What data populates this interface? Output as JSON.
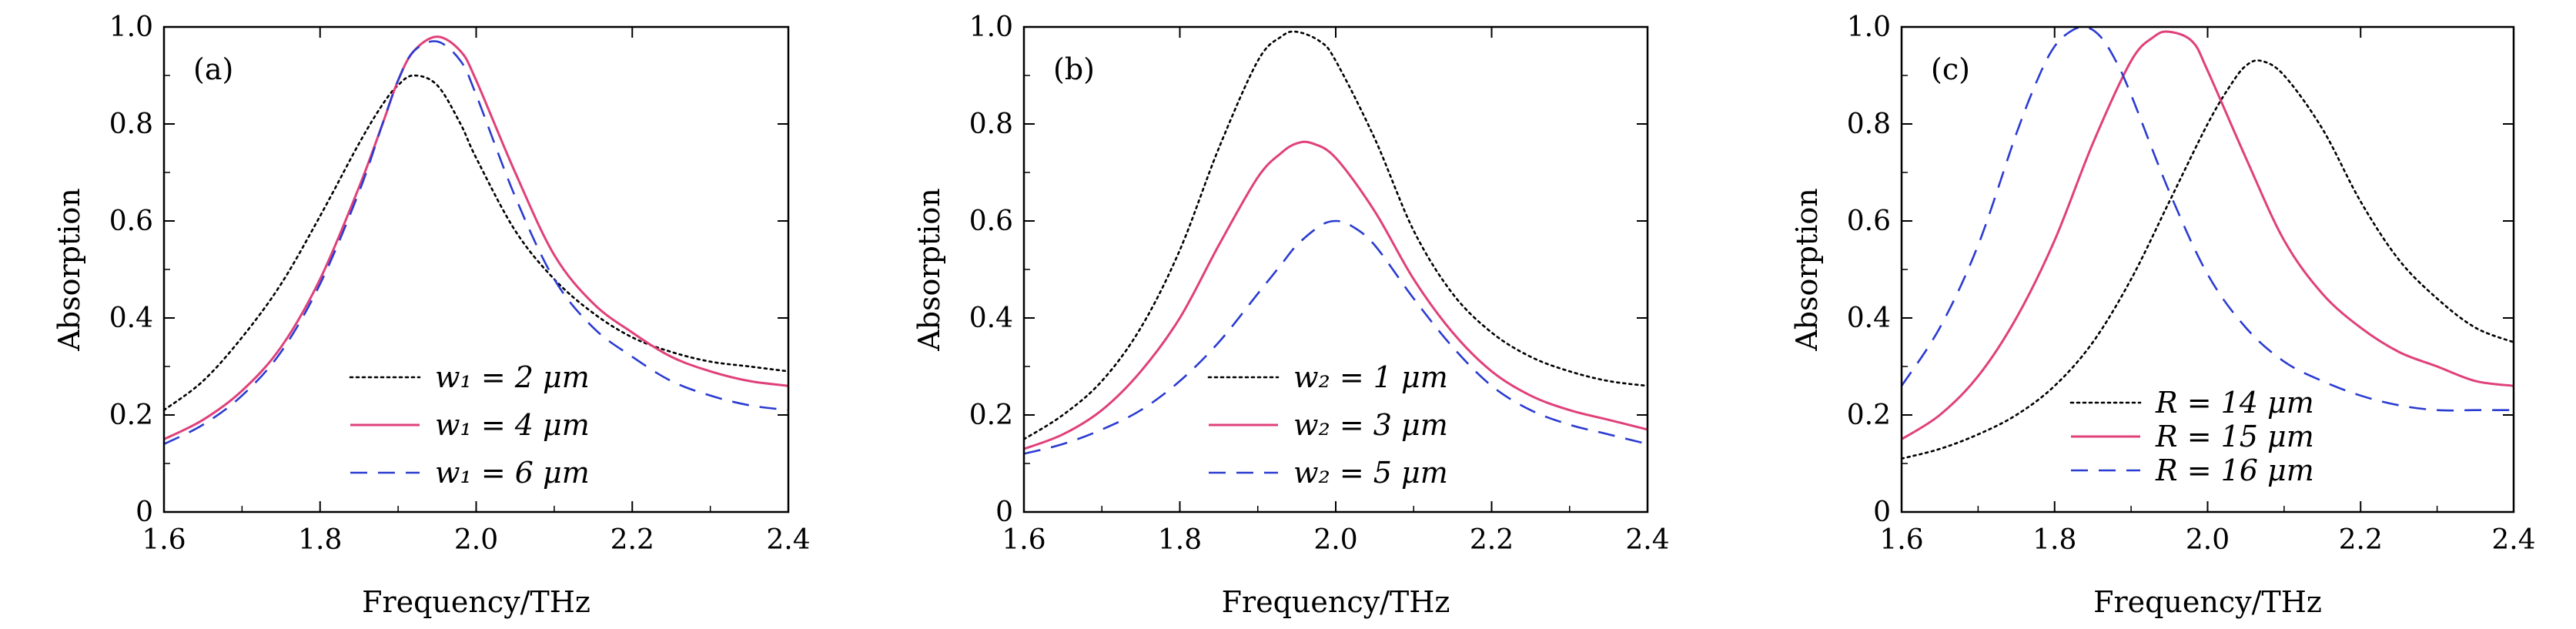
{
  "chart_data": [
    {
      "type": "line",
      "panel_label": "(a)",
      "xlabel": "Frequency/THz",
      "ylabel": "Absorption",
      "xlim": [
        1.6,
        2.4
      ],
      "ylim": [
        0,
        1.0
      ],
      "xticks": [
        1.6,
        1.8,
        2.0,
        2.2,
        2.4
      ],
      "xtick_labels": [
        "1.6",
        "1.8",
        "2.0",
        "2.2",
        "2.4"
      ],
      "yticks": [
        0,
        0.2,
        0.4,
        0.6,
        0.8,
        1.0
      ],
      "ytick_labels": [
        "0",
        "0.2",
        "0.4",
        "0.6",
        "0.8",
        "1.0"
      ],
      "grid": false,
      "legend_position": "bottom-right",
      "series": [
        {
          "name": "w₁ = 2 μm",
          "style": "dotted",
          "color": "#000000",
          "x": [
            1.6,
            1.65,
            1.7,
            1.75,
            1.8,
            1.85,
            1.88,
            1.9,
            1.92,
            1.95,
            1.98,
            2.0,
            2.05,
            2.1,
            2.15,
            2.2,
            2.25,
            2.3,
            2.35,
            2.4
          ],
          "y": [
            0.21,
            0.27,
            0.36,
            0.47,
            0.61,
            0.76,
            0.84,
            0.88,
            0.9,
            0.88,
            0.8,
            0.73,
            0.58,
            0.48,
            0.41,
            0.36,
            0.33,
            0.31,
            0.3,
            0.29
          ]
        },
        {
          "name": "w₁ = 4 μm",
          "style": "solid",
          "color": "#e0407a",
          "x": [
            1.6,
            1.65,
            1.7,
            1.75,
            1.8,
            1.85,
            1.88,
            1.9,
            1.92,
            1.95,
            1.98,
            2.0,
            2.05,
            2.1,
            2.15,
            2.2,
            2.25,
            2.3,
            2.35,
            2.4
          ],
          "y": [
            0.15,
            0.19,
            0.25,
            0.34,
            0.48,
            0.67,
            0.8,
            0.89,
            0.95,
            0.98,
            0.95,
            0.89,
            0.7,
            0.53,
            0.43,
            0.37,
            0.32,
            0.29,
            0.27,
            0.26
          ]
        },
        {
          "name": "w₁ = 6 μm",
          "style": "dashed",
          "color": "#2a3bd1",
          "x": [
            1.6,
            1.65,
            1.7,
            1.75,
            1.8,
            1.85,
            1.88,
            1.9,
            1.92,
            1.95,
            1.98,
            2.0,
            2.05,
            2.1,
            2.15,
            2.2,
            2.25,
            2.3,
            2.35,
            2.4
          ],
          "y": [
            0.14,
            0.18,
            0.24,
            0.33,
            0.47,
            0.66,
            0.8,
            0.89,
            0.95,
            0.97,
            0.93,
            0.86,
            0.65,
            0.48,
            0.38,
            0.32,
            0.27,
            0.24,
            0.22,
            0.21
          ]
        }
      ]
    },
    {
      "type": "line",
      "panel_label": "(b)",
      "xlabel": "Frequency/THz",
      "ylabel": "Absorption",
      "xlim": [
        1.6,
        2.4
      ],
      "ylim": [
        0,
        1.0
      ],
      "xticks": [
        1.6,
        1.8,
        2.0,
        2.2,
        2.4
      ],
      "xtick_labels": [
        "1.6",
        "1.8",
        "2.0",
        "2.2",
        "2.4"
      ],
      "yticks": [
        0,
        0.2,
        0.4,
        0.6,
        0.8,
        1.0
      ],
      "ytick_labels": [
        "0",
        "0.2",
        "0.4",
        "0.6",
        "0.8",
        "1.0"
      ],
      "grid": false,
      "legend_position": "bottom-right",
      "series": [
        {
          "name": "w₂ = 1 μm",
          "style": "dotted",
          "color": "#000000",
          "x": [
            1.6,
            1.65,
            1.7,
            1.75,
            1.8,
            1.85,
            1.9,
            1.93,
            1.95,
            1.98,
            2.0,
            2.05,
            2.1,
            2.15,
            2.2,
            2.25,
            2.3,
            2.35,
            2.4
          ],
          "y": [
            0.15,
            0.2,
            0.27,
            0.38,
            0.54,
            0.75,
            0.93,
            0.98,
            0.99,
            0.97,
            0.93,
            0.77,
            0.58,
            0.45,
            0.37,
            0.32,
            0.29,
            0.27,
            0.26
          ]
        },
        {
          "name": "w₂ = 3 μm",
          "style": "solid",
          "color": "#e0407a",
          "x": [
            1.6,
            1.65,
            1.7,
            1.75,
            1.8,
            1.85,
            1.9,
            1.93,
            1.95,
            1.97,
            2.0,
            2.05,
            2.1,
            2.15,
            2.2,
            2.25,
            2.3,
            2.35,
            2.4
          ],
          "y": [
            0.13,
            0.16,
            0.21,
            0.29,
            0.4,
            0.55,
            0.69,
            0.74,
            0.76,
            0.76,
            0.73,
            0.62,
            0.48,
            0.37,
            0.29,
            0.24,
            0.21,
            0.19,
            0.17
          ]
        },
        {
          "name": "w₂ = 5 μm",
          "style": "dashed",
          "color": "#2a3bd1",
          "x": [
            1.6,
            1.65,
            1.7,
            1.75,
            1.8,
            1.85,
            1.9,
            1.93,
            1.95,
            1.98,
            2.0,
            2.02,
            2.05,
            2.1,
            2.15,
            2.2,
            2.25,
            2.3,
            2.35,
            2.4
          ],
          "y": [
            0.12,
            0.14,
            0.17,
            0.21,
            0.27,
            0.35,
            0.45,
            0.51,
            0.55,
            0.59,
            0.6,
            0.59,
            0.55,
            0.44,
            0.34,
            0.26,
            0.21,
            0.18,
            0.16,
            0.14
          ]
        }
      ]
    },
    {
      "type": "line",
      "panel_label": "(c)",
      "xlabel": "Frequency/THz",
      "ylabel": "Absorption",
      "xlim": [
        1.6,
        2.4
      ],
      "ylim": [
        0,
        1.0
      ],
      "xticks": [
        1.6,
        1.8,
        2.0,
        2.2,
        2.4
      ],
      "xtick_labels": [
        "1.6",
        "1.8",
        "2.0",
        "2.2",
        "2.4"
      ],
      "yticks": [
        0,
        0.2,
        0.4,
        0.6,
        0.8,
        1.0
      ],
      "ytick_labels": [
        "0",
        "0.2",
        "0.4",
        "0.6",
        "0.8",
        "1.0"
      ],
      "grid": false,
      "legend_position": "bottom-center",
      "series": [
        {
          "name": "R = 14 μm",
          "style": "dotted",
          "color": "#000000",
          "x": [
            1.6,
            1.65,
            1.7,
            1.75,
            1.8,
            1.85,
            1.9,
            1.95,
            2.0,
            2.03,
            2.05,
            2.07,
            2.1,
            2.15,
            2.2,
            2.25,
            2.3,
            2.35,
            2.4
          ],
          "y": [
            0.11,
            0.13,
            0.16,
            0.2,
            0.26,
            0.35,
            0.48,
            0.64,
            0.8,
            0.88,
            0.92,
            0.93,
            0.9,
            0.79,
            0.64,
            0.52,
            0.44,
            0.38,
            0.35
          ]
        },
        {
          "name": "R = 15 μm",
          "style": "solid",
          "color": "#e0407a",
          "x": [
            1.6,
            1.65,
            1.7,
            1.75,
            1.8,
            1.85,
            1.9,
            1.93,
            1.95,
            1.98,
            2.0,
            2.05,
            2.1,
            2.15,
            2.2,
            2.25,
            2.3,
            2.35,
            2.4
          ],
          "y": [
            0.15,
            0.2,
            0.28,
            0.4,
            0.56,
            0.76,
            0.93,
            0.98,
            0.99,
            0.97,
            0.91,
            0.73,
            0.56,
            0.45,
            0.38,
            0.33,
            0.3,
            0.27,
            0.26
          ]
        },
        {
          "name": "R = 16 μm",
          "style": "dashed",
          "color": "#2a3bd1",
          "x": [
            1.6,
            1.65,
            1.7,
            1.75,
            1.78,
            1.8,
            1.82,
            1.84,
            1.86,
            1.88,
            1.9,
            1.95,
            2.0,
            2.05,
            2.1,
            2.15,
            2.2,
            2.25,
            2.3,
            2.35,
            2.4
          ],
          "y": [
            0.26,
            0.38,
            0.55,
            0.78,
            0.9,
            0.96,
            0.99,
            1.0,
            0.98,
            0.93,
            0.86,
            0.66,
            0.49,
            0.38,
            0.31,
            0.27,
            0.24,
            0.22,
            0.21,
            0.21,
            0.21
          ]
        }
      ]
    }
  ]
}
